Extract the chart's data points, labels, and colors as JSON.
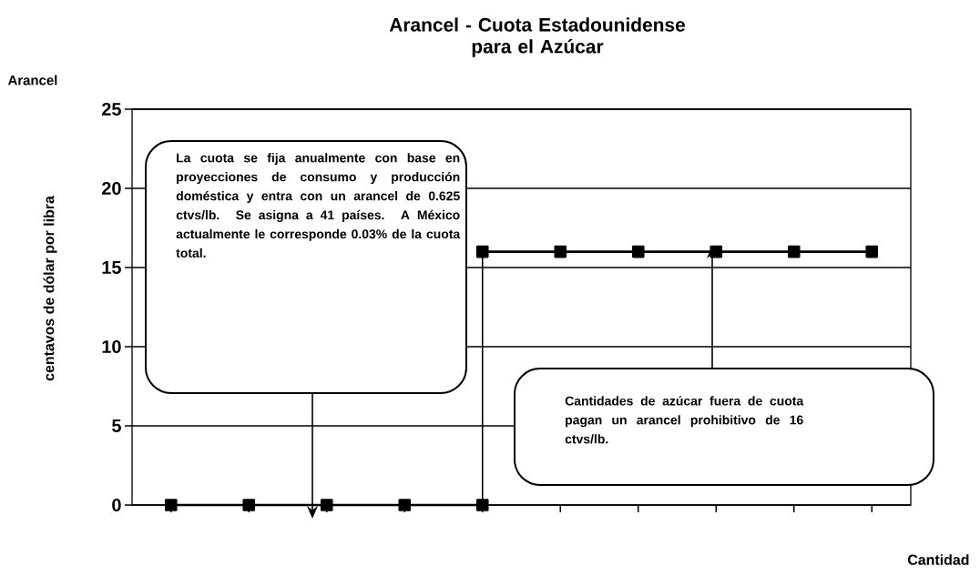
{
  "chart_data": {
    "type": "line",
    "title": "Arancel - Cuota Estadounidense\npara el Azúcar",
    "subtitle": "Arancel",
    "xlabel": "Cantidad",
    "ylabel": "centavos de dólar por libra",
    "categories": [
      null,
      null,
      null,
      null,
      null,
      null,
      null,
      null,
      null,
      null
    ],
    "series": [
      {
        "color": "#000000",
        "values": [
          0,
          0,
          0,
          0,
          0,
          null,
          null,
          null,
          null,
          null
        ]
      },
      {
        "color": "#000000",
        "values": [
          null,
          null,
          null,
          null,
          16,
          16,
          16,
          16,
          16,
          16
        ]
      }
    ],
    "ylim": [
      0,
      25
    ],
    "yticks": [
      0,
      5,
      10,
      15,
      20,
      25
    ],
    "grid": "y",
    "marker": "square",
    "line_style": "solid",
    "tick_labels": "y",
    "annotations": [
      "La cuota se fija anualmente con base en proyecciones de consumo y producción doméstica y entra con un arancel de 0.625 ctvs/lb. Se asigna a 41 países. A México actualmente le corresponde 0.03% de la cuota total.",
      "Cantidades de azúcar fuera de cuota pagan un arancel prohibitivo de 16 ctvs/lb."
    ]
  }
}
